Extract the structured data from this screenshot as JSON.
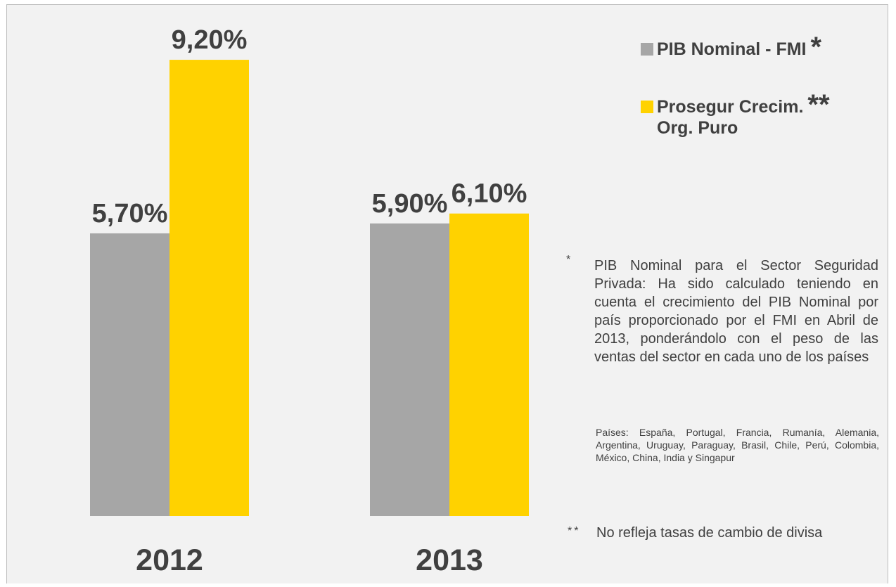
{
  "chart_data": {
    "type": "bar",
    "categories": [
      "2012",
      "2013"
    ],
    "series": [
      {
        "name": "PIB Nominal - FMI",
        "values": [
          5.7,
          5.9
        ],
        "labels": [
          "5,70%",
          "5,90%"
        ],
        "color": "#a6a6a6"
      },
      {
        "name": "Prosegur Crecim.\nOrg. Puro",
        "values": [
          9.2,
          6.1
        ],
        "labels": [
          "9,20%",
          "6,10%"
        ],
        "color": "#ffd200"
      }
    ],
    "ylim": [
      0,
      10.25
    ],
    "grid": false,
    "legend_position": "top-right",
    "legend_marks": [
      "*",
      "**"
    ]
  },
  "notes": {
    "note1_mark": "*",
    "note1": "PIB Nominal para el Sector Seguridad Privada: Ha sido calculado teniendo en cuenta el crecimiento del PIB Nominal por país proporcionado por el FMI en Abril de 2013, ponderándolo con el peso de las ventas del sector en cada uno de los países",
    "note1_sub": "Países: España, Portugal, Francia, Rumanía, Alemania, Argentina, Uruguay, Paraguay, Brasil, Chile, Perú, Colombia, México, China, India y Singapur",
    "note2_mark": "**",
    "note2": "No refleja tasas de cambio de divisa"
  },
  "colors": {
    "panel_bg": "#f2f2f2",
    "text": "#404040",
    "gray_bar": "#a6a6a6",
    "yellow_bar": "#ffd200"
  }
}
